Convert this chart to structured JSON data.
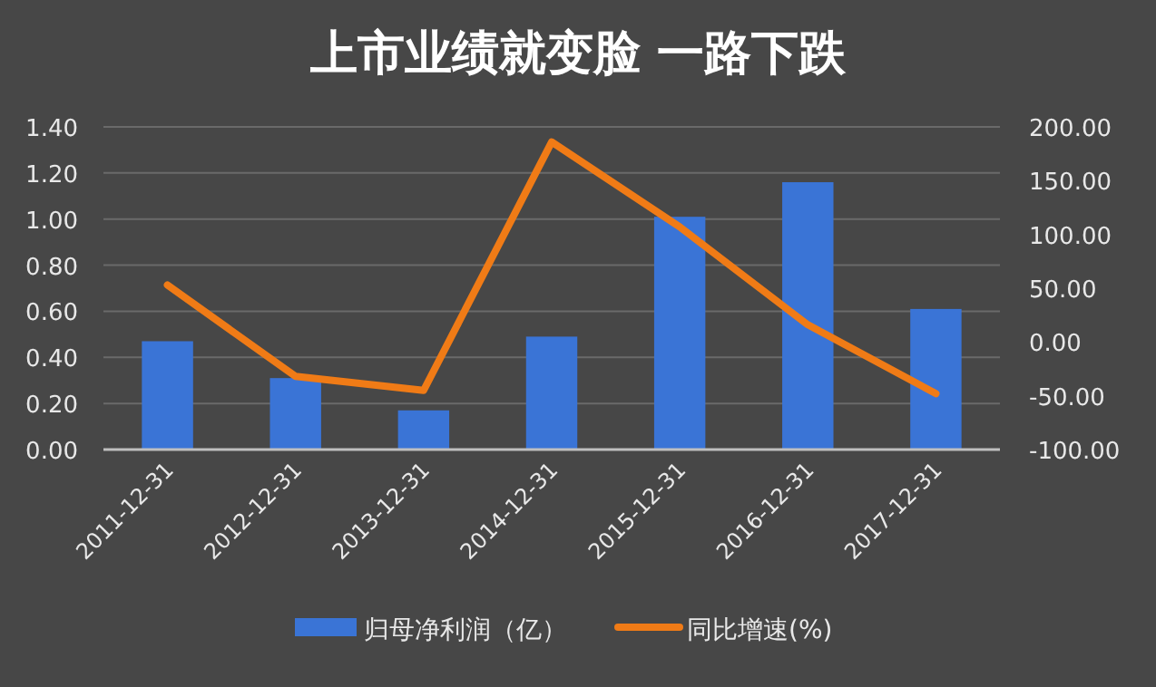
{
  "chart_data": {
    "type": "bar",
    "title": "上市业绩就变脸 一路下跌",
    "categories": [
      "2011-12-31",
      "2012-12-31",
      "2013-12-31",
      "2014-12-31",
      "2015-12-31",
      "2016-12-31",
      "2017-12-31"
    ],
    "series": [
      {
        "name": "归母净利润（亿）",
        "color": "#3a74d6",
        "values": [
          0.47,
          0.31,
          0.17,
          0.49,
          1.01,
          1.16,
          0.61
        ]
      },
      {
        "name": "同比增速(%)",
        "type": "line",
        "axis": "y2",
        "color": "#f07b16",
        "values": [
          53,
          -32,
          -45,
          186,
          107,
          16,
          -48
        ]
      }
    ],
    "ylim": [
      0,
      1.4
    ],
    "yticks": [
      {
        "value": 0,
        "label": "0.00"
      },
      {
        "value": 0.2,
        "label": "0.20"
      },
      {
        "value": 0.4,
        "label": "0.40"
      },
      {
        "value": 0.6,
        "label": "0.60"
      },
      {
        "value": 0.8,
        "label": "0.80"
      },
      {
        "value": 1.0,
        "label": "1.00"
      },
      {
        "value": 1.2,
        "label": "1.20"
      },
      {
        "value": 1.4,
        "label": "1.40"
      }
    ],
    "y2lim": [
      -100,
      200
    ],
    "y2ticks": [
      {
        "value": -100,
        "label": "-100.00"
      },
      {
        "value": -50,
        "label": "-50.00"
      },
      {
        "value": 0,
        "label": "0.00"
      },
      {
        "value": 50,
        "label": "50.00"
      },
      {
        "value": 100,
        "label": "100.00"
      },
      {
        "value": 150,
        "label": "150.00"
      },
      {
        "value": 200,
        "label": "200.00"
      }
    ],
    "grid": "y",
    "legend": "bottom"
  }
}
